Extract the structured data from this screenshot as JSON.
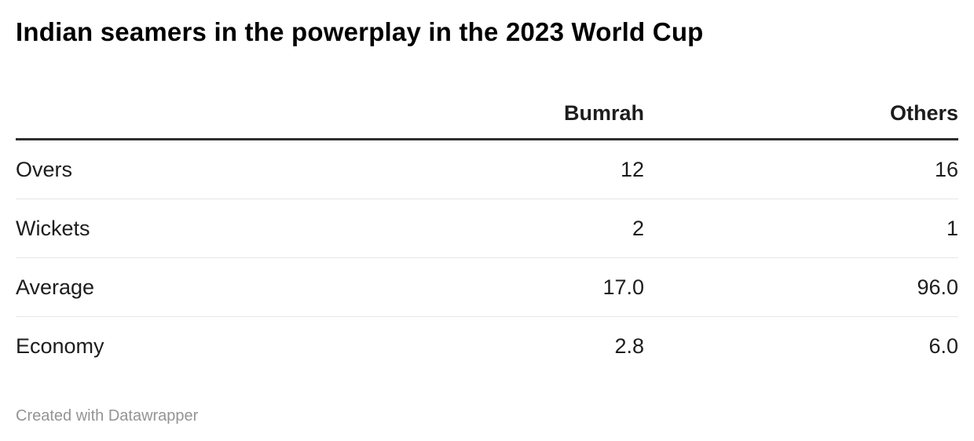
{
  "title": "Indian seamers in the powerplay in the 2023 World Cup",
  "attribution": "Created with Datawrapper",
  "colors": {
    "title_text": "#000000",
    "body_text": "#1d1d1d",
    "header_rule": "#2e2e2e",
    "row_divider": "#e6e6e6",
    "attribution_text": "#949494",
    "background": "#ffffff"
  },
  "chart_data": {
    "type": "table",
    "title": "Indian seamers in the powerplay in the 2023 World Cup",
    "columns": [
      "",
      "Bumrah",
      "Others"
    ],
    "rows": [
      {
        "label": "Overs",
        "values": [
          "12",
          "16"
        ]
      },
      {
        "label": "Wickets",
        "values": [
          "2",
          "1"
        ]
      },
      {
        "label": "Average",
        "values": [
          "17.0",
          "96.0"
        ]
      },
      {
        "label": "Economy",
        "values": [
          "2.8",
          "6.0"
        ]
      }
    ],
    "layout": {
      "label_column_align": "left",
      "value_columns_align": "right",
      "header_rule": "thick-dark",
      "row_divider": "light-gray"
    }
  }
}
